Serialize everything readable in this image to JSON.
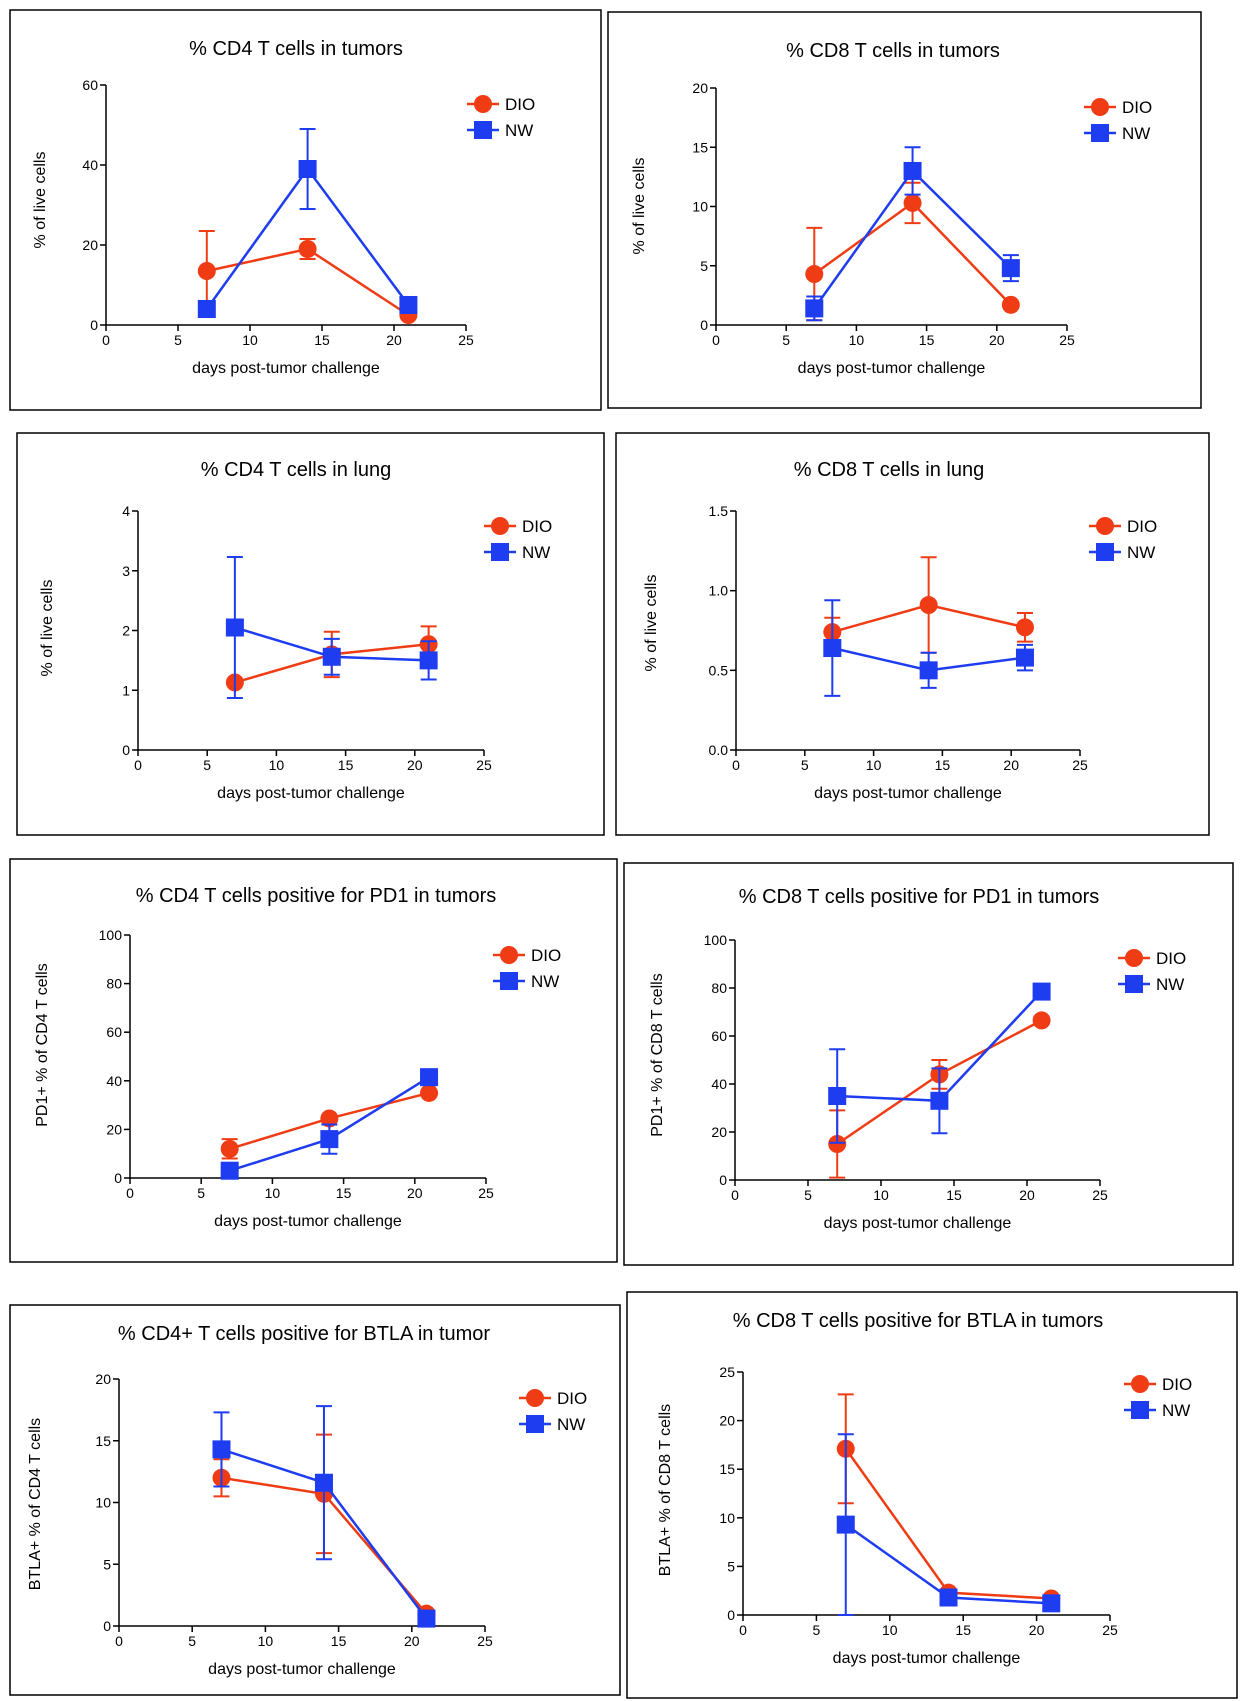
{
  "colors": {
    "DIO": "#f03c14",
    "NW": "#1e3cf0"
  },
  "chart_data": [
    {
      "type": "line",
      "title": "% CD4 T cells in tumors",
      "xlabel": "days post-tumor challenge",
      "ylabel": "% of live cells",
      "xlim": [
        0,
        25
      ],
      "ylim": [
        0,
        60
      ],
      "xticks": [
        "0",
        "5",
        "10",
        "15",
        "20",
        "25"
      ],
      "yticks": [
        "0",
        "20",
        "40",
        "60"
      ],
      "x": [
        7,
        14,
        21
      ],
      "series": [
        {
          "name": "DIO",
          "values": [
            13.5,
            19,
            2.5
          ],
          "err": [
            10,
            2.5,
            0
          ]
        },
        {
          "name": "NW",
          "values": [
            4,
            39,
            5
          ],
          "err": [
            1,
            10,
            1
          ]
        }
      ]
    },
    {
      "type": "line",
      "title": "% CD8 T cells in tumors",
      "xlabel": "days post-tumor challenge",
      "ylabel": "% of live cells",
      "xlim": [
        0,
        25
      ],
      "ylim": [
        0,
        20
      ],
      "xticks": [
        "0",
        "5",
        "10",
        "15",
        "20",
        "25"
      ],
      "yticks": [
        "0",
        "5",
        "10",
        "15",
        "20"
      ],
      "x": [
        7,
        14,
        21
      ],
      "series": [
        {
          "name": "DIO",
          "values": [
            4.3,
            10.3,
            1.7
          ],
          "err": [
            3.9,
            1.7,
            0
          ]
        },
        {
          "name": "NW",
          "values": [
            1.4,
            13,
            4.8
          ],
          "err": [
            1,
            2,
            1.1
          ]
        }
      ]
    },
    {
      "type": "line",
      "title": "% CD4 T cells in lung",
      "xlabel": "days post-tumor challenge",
      "ylabel": "% of live cells",
      "xlim": [
        0,
        25
      ],
      "ylim": [
        0,
        4
      ],
      "xticks": [
        "0",
        "5",
        "10",
        "15",
        "20",
        "25"
      ],
      "yticks": [
        "0",
        "1",
        "2",
        "3",
        "4"
      ],
      "x": [
        7,
        14,
        21
      ],
      "series": [
        {
          "name": "DIO",
          "values": [
            1.13,
            1.6,
            1.77
          ],
          "err": [
            0,
            0.38,
            0.3
          ]
        },
        {
          "name": "NW",
          "values": [
            2.05,
            1.56,
            1.5
          ],
          "err": [
            1.18,
            0.3,
            0.32
          ]
        }
      ]
    },
    {
      "type": "line",
      "title": "% CD8 T cells in lung",
      "xlabel": "days post-tumor challenge",
      "ylabel": "% of live cells",
      "xlim": [
        0,
        25
      ],
      "ylim": [
        0,
        1.5
      ],
      "xticks": [
        "0",
        "5",
        "10",
        "15",
        "20",
        "25"
      ],
      "yticks": [
        "0.0",
        "0.5",
        "1.0",
        "1.5"
      ],
      "x": [
        7,
        14,
        21
      ],
      "series": [
        {
          "name": "DIO",
          "values": [
            0.74,
            0.91,
            0.77
          ],
          "err": [
            0.09,
            0.3,
            0.09
          ]
        },
        {
          "name": "NW",
          "values": [
            0.64,
            0.5,
            0.58
          ],
          "err": [
            0.3,
            0.11,
            0.08
          ]
        }
      ]
    },
    {
      "type": "line",
      "title": "% CD4 T cells positive for PD1 in tumors",
      "xlabel": "days post-tumor challenge",
      "ylabel": "PD1+ % of CD4 T cells",
      "xlim": [
        0,
        25
      ],
      "ylim": [
        0,
        100
      ],
      "xticks": [
        "0",
        "5",
        "10",
        "15",
        "20",
        "25"
      ],
      "yticks": [
        "0",
        "20",
        "40",
        "60",
        "80",
        "100"
      ],
      "x": [
        7,
        14,
        21
      ],
      "series": [
        {
          "name": "DIO",
          "values": [
            12,
            24.5,
            35
          ],
          "err": [
            4,
            0,
            0
          ]
        },
        {
          "name": "NW",
          "values": [
            3,
            16,
            41.5
          ],
          "err": [
            1,
            6,
            0
          ]
        }
      ]
    },
    {
      "type": "line",
      "title": "% CD8 T cells positive for PD1 in tumors",
      "xlabel": "days post-tumor challenge",
      "ylabel": "PD1+ % of CD8 T cells",
      "xlim": [
        0,
        25
      ],
      "ylim": [
        0,
        100
      ],
      "xticks": [
        "0",
        "5",
        "10",
        "15",
        "20",
        "25"
      ],
      "yticks": [
        "0",
        "20",
        "40",
        "60",
        "80",
        "100"
      ],
      "x": [
        7,
        14,
        21
      ],
      "series": [
        {
          "name": "DIO",
          "values": [
            15,
            44,
            66.5
          ],
          "err": [
            14,
            6,
            0
          ]
        },
        {
          "name": "NW",
          "values": [
            35,
            33,
            78.5
          ],
          "err": [
            19.5,
            13.5,
            0
          ]
        }
      ]
    },
    {
      "type": "line",
      "title": "% CD4+ T cells positive for BTLA in tumor",
      "xlabel": "days post-tumor challenge",
      "ylabel": "BTLA+ % of CD4 T cells",
      "xlim": [
        0,
        25
      ],
      "ylim": [
        0,
        20
      ],
      "xticks": [
        "0",
        "5",
        "10",
        "15",
        "20",
        "25"
      ],
      "yticks": [
        "0",
        "5",
        "10",
        "15",
        "20"
      ],
      "x": [
        7,
        14,
        21
      ],
      "series": [
        {
          "name": "DIO",
          "values": [
            12,
            10.7,
            1
          ],
          "err": [
            1.5,
            4.8,
            0
          ]
        },
        {
          "name": "NW",
          "values": [
            14.3,
            11.6,
            0.6
          ],
          "err": [
            3,
            6.2,
            0
          ]
        }
      ]
    },
    {
      "type": "line",
      "title": "% CD8 T cells positive for BTLA in tumors",
      "xlabel": "days post-tumor challenge",
      "ylabel": "BTLA+ % of CD8 T cells",
      "xlim": [
        0,
        25
      ],
      "ylim": [
        0,
        25
      ],
      "xticks": [
        "0",
        "5",
        "10",
        "15",
        "20",
        "25"
      ],
      "yticks": [
        "0",
        "5",
        "10",
        "15",
        "20",
        "25"
      ],
      "x": [
        7,
        14,
        21
      ],
      "series": [
        {
          "name": "DIO",
          "values": [
            17.1,
            2.3,
            1.7
          ],
          "err": [
            5.6,
            0,
            0
          ]
        },
        {
          "name": "NW",
          "values": [
            9.3,
            1.8,
            1.2
          ],
          "err": [
            9.3,
            0,
            0
          ]
        }
      ]
    }
  ]
}
